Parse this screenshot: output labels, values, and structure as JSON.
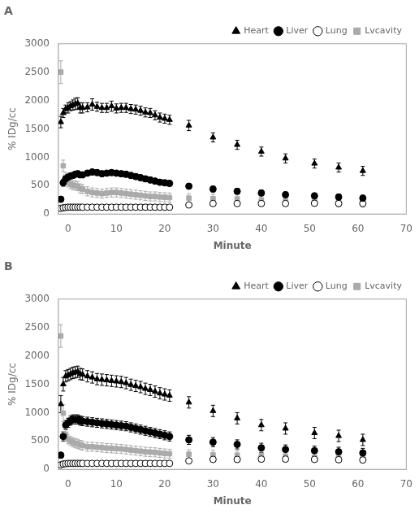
{
  "chart_data": [
    {
      "type": "scatter",
      "title": "A",
      "xlabel": "Minute",
      "ylabel": "% IDg/cc",
      "xlim": [
        -2,
        70
      ],
      "ylim": [
        0,
        3000
      ],
      "xticks": [
        0,
        10,
        20,
        30,
        40,
        50,
        60,
        70
      ],
      "yticks": [
        0,
        500,
        1000,
        1500,
        2000,
        2500,
        3000
      ],
      "grid": false,
      "legend": "upper right",
      "x": [
        -1.5,
        -1,
        -0.5,
        0,
        0.5,
        1,
        1.5,
        2,
        2.5,
        3,
        4,
        5,
        6,
        7,
        8,
        9,
        10,
        11,
        12,
        13,
        14,
        15,
        16,
        17,
        18,
        19,
        20,
        21,
        25,
        30,
        35,
        40,
        45,
        51,
        56,
        61
      ],
      "series": [
        {
          "name": "Heart",
          "color": "#000000",
          "marker": "triangle",
          "values": [
            1620,
            1780,
            1850,
            1870,
            1900,
            1920,
            1940,
            1950,
            1870,
            1870,
            1880,
            1930,
            1890,
            1870,
            1870,
            1900,
            1860,
            1870,
            1870,
            1850,
            1840,
            1820,
            1790,
            1780,
            1740,
            1700,
            1680,
            1660,
            1560,
            1350,
            1220,
            1100,
            980,
            890,
            820,
            760
          ],
          "errors": [
            100,
            80,
            70,
            90,
            80,
            90,
            100,
            100,
            90,
            90,
            80,
            100,
            80,
            80,
            80,
            90,
            80,
            80,
            80,
            80,
            80,
            80,
            80,
            80,
            80,
            80,
            80,
            80,
            90,
            80,
            80,
            80,
            80,
            80,
            80,
            80
          ]
        },
        {
          "name": "Liver",
          "color": "#000000",
          "marker": "circle",
          "values": [
            260,
            550,
            620,
            650,
            670,
            680,
            700,
            710,
            690,
            690,
            720,
            740,
            730,
            710,
            720,
            730,
            720,
            710,
            700,
            680,
            660,
            640,
            620,
            600,
            580,
            560,
            550,
            540,
            490,
            440,
            400,
            370,
            340,
            320,
            300,
            280
          ],
          "errors": [
            50,
            60,
            50,
            50,
            50,
            50,
            50,
            50,
            50,
            50,
            50,
            50,
            50,
            50,
            50,
            50,
            50,
            50,
            50,
            50,
            50,
            50,
            50,
            50,
            50,
            50,
            50,
            50,
            50,
            50,
            50,
            50,
            50,
            50,
            50,
            50
          ]
        },
        {
          "name": "Lung",
          "color": "#000000",
          "marker": "open_circle",
          "values": [
            100,
            110,
            115,
            120,
            120,
            120,
            120,
            120,
            120,
            120,
            120,
            120,
            120,
            120,
            120,
            120,
            120,
            120,
            120,
            120,
            120,
            120,
            120,
            120,
            120,
            120,
            120,
            120,
            160,
            185,
            185,
            185,
            185,
            190,
            185,
            185
          ],
          "errors": [
            10,
            10,
            10,
            10,
            10,
            10,
            10,
            10,
            10,
            10,
            10,
            10,
            10,
            10,
            10,
            10,
            10,
            10,
            10,
            10,
            10,
            10,
            10,
            10,
            10,
            10,
            10,
            10,
            20,
            20,
            20,
            20,
            20,
            20,
            20,
            20
          ]
        },
        {
          "name": "Lvcavity",
          "color": "#aaaaaa",
          "marker": "square",
          "values": [
            2500,
            850,
            650,
            560,
            530,
            510,
            500,
            490,
            450,
            440,
            400,
            380,
            370,
            360,
            370,
            380,
            380,
            370,
            360,
            350,
            340,
            330,
            320,
            310,
            310,
            300,
            295,
            290,
            280,
            270,
            265,
            250,
            230,
            220,
            210,
            200
          ],
          "errors": [
            200,
            100,
            80,
            80,
            80,
            80,
            80,
            80,
            80,
            80,
            80,
            80,
            80,
            80,
            80,
            80,
            80,
            80,
            80,
            80,
            80,
            80,
            80,
            80,
            80,
            80,
            80,
            80,
            80,
            80,
            80,
            80,
            80,
            80,
            80,
            80
          ]
        }
      ]
    },
    {
      "type": "scatter",
      "title": "B",
      "xlabel": "Minute",
      "ylabel": "% IDg/cc",
      "xlim": [
        -2,
        70
      ],
      "ylim": [
        0,
        3000
      ],
      "xticks": [
        0,
        10,
        20,
        30,
        40,
        50,
        60,
        70
      ],
      "yticks": [
        0,
        500,
        1000,
        1500,
        2000,
        2500,
        3000
      ],
      "grid": false,
      "legend": "upper right",
      "x": [
        -1.5,
        -1,
        -0.5,
        0,
        0.5,
        1,
        1.5,
        2,
        2.5,
        3,
        4,
        5,
        6,
        7,
        8,
        9,
        10,
        11,
        12,
        13,
        14,
        15,
        16,
        17,
        18,
        19,
        20,
        21,
        25,
        30,
        35,
        40,
        45,
        51,
        56,
        61
      ],
      "series": [
        {
          "name": "Heart",
          "color": "#000000",
          "marker": "triangle",
          "values": [
            1150,
            1500,
            1640,
            1660,
            1680,
            1700,
            1710,
            1720,
            1680,
            1670,
            1640,
            1620,
            1590,
            1580,
            1570,
            1560,
            1550,
            1540,
            1520,
            1490,
            1470,
            1450,
            1420,
            1400,
            1370,
            1340,
            1320,
            1300,
            1180,
            1030,
            900,
            780,
            720,
            640,
            590,
            520
          ],
          "errors": [
            150,
            120,
            100,
            100,
            100,
            100,
            100,
            100,
            100,
            100,
            100,
            100,
            100,
            100,
            100,
            100,
            100,
            100,
            100,
            100,
            100,
            100,
            100,
            100,
            100,
            100,
            100,
            100,
            100,
            100,
            100,
            100,
            100,
            100,
            100,
            100
          ]
        },
        {
          "name": "Liver",
          "color": "#000000",
          "marker": "circle",
          "values": [
            250,
            580,
            780,
            820,
            860,
            880,
            880,
            880,
            860,
            850,
            840,
            830,
            820,
            810,
            800,
            790,
            780,
            770,
            760,
            740,
            720,
            700,
            680,
            660,
            640,
            620,
            600,
            580,
            520,
            480,
            440,
            380,
            350,
            330,
            310,
            290
          ],
          "errors": [
            50,
            80,
            80,
            80,
            80,
            80,
            80,
            80,
            80,
            80,
            80,
            80,
            80,
            80,
            80,
            80,
            80,
            80,
            80,
            80,
            80,
            80,
            80,
            80,
            80,
            80,
            80,
            80,
            80,
            80,
            80,
            80,
            80,
            80,
            80,
            80
          ]
        },
        {
          "name": "Lung",
          "color": "#000000",
          "marker": "open_circle",
          "values": [
            80,
            95,
            100,
            105,
            105,
            105,
            105,
            105,
            105,
            105,
            105,
            105,
            105,
            105,
            105,
            105,
            105,
            105,
            105,
            105,
            105,
            105,
            105,
            105,
            105,
            105,
            105,
            105,
            150,
            175,
            175,
            180,
            180,
            175,
            170,
            165
          ],
          "errors": [
            10,
            10,
            10,
            10,
            10,
            10,
            10,
            10,
            10,
            10,
            10,
            10,
            10,
            10,
            10,
            10,
            10,
            10,
            10,
            10,
            10,
            10,
            10,
            10,
            10,
            10,
            10,
            10,
            15,
            15,
            15,
            15,
            15,
            15,
            15,
            15
          ]
        },
        {
          "name": "Lvcavity",
          "color": "#aaaaaa",
          "marker": "square",
          "values": [
            2350,
            990,
            620,
            530,
            500,
            480,
            460,
            450,
            430,
            420,
            400,
            400,
            390,
            385,
            375,
            370,
            365,
            360,
            350,
            340,
            330,
            320,
            310,
            305,
            300,
            290,
            280,
            275,
            265,
            255,
            250,
            240,
            230,
            220,
            210,
            200
          ],
          "errors": [
            200,
            150,
            100,
            80,
            80,
            80,
            80,
            80,
            80,
            80,
            80,
            80,
            80,
            80,
            80,
            80,
            80,
            80,
            80,
            80,
            80,
            80,
            80,
            80,
            80,
            80,
            80,
            80,
            80,
            80,
            80,
            80,
            80,
            80,
            80,
            80
          ]
        }
      ]
    }
  ]
}
